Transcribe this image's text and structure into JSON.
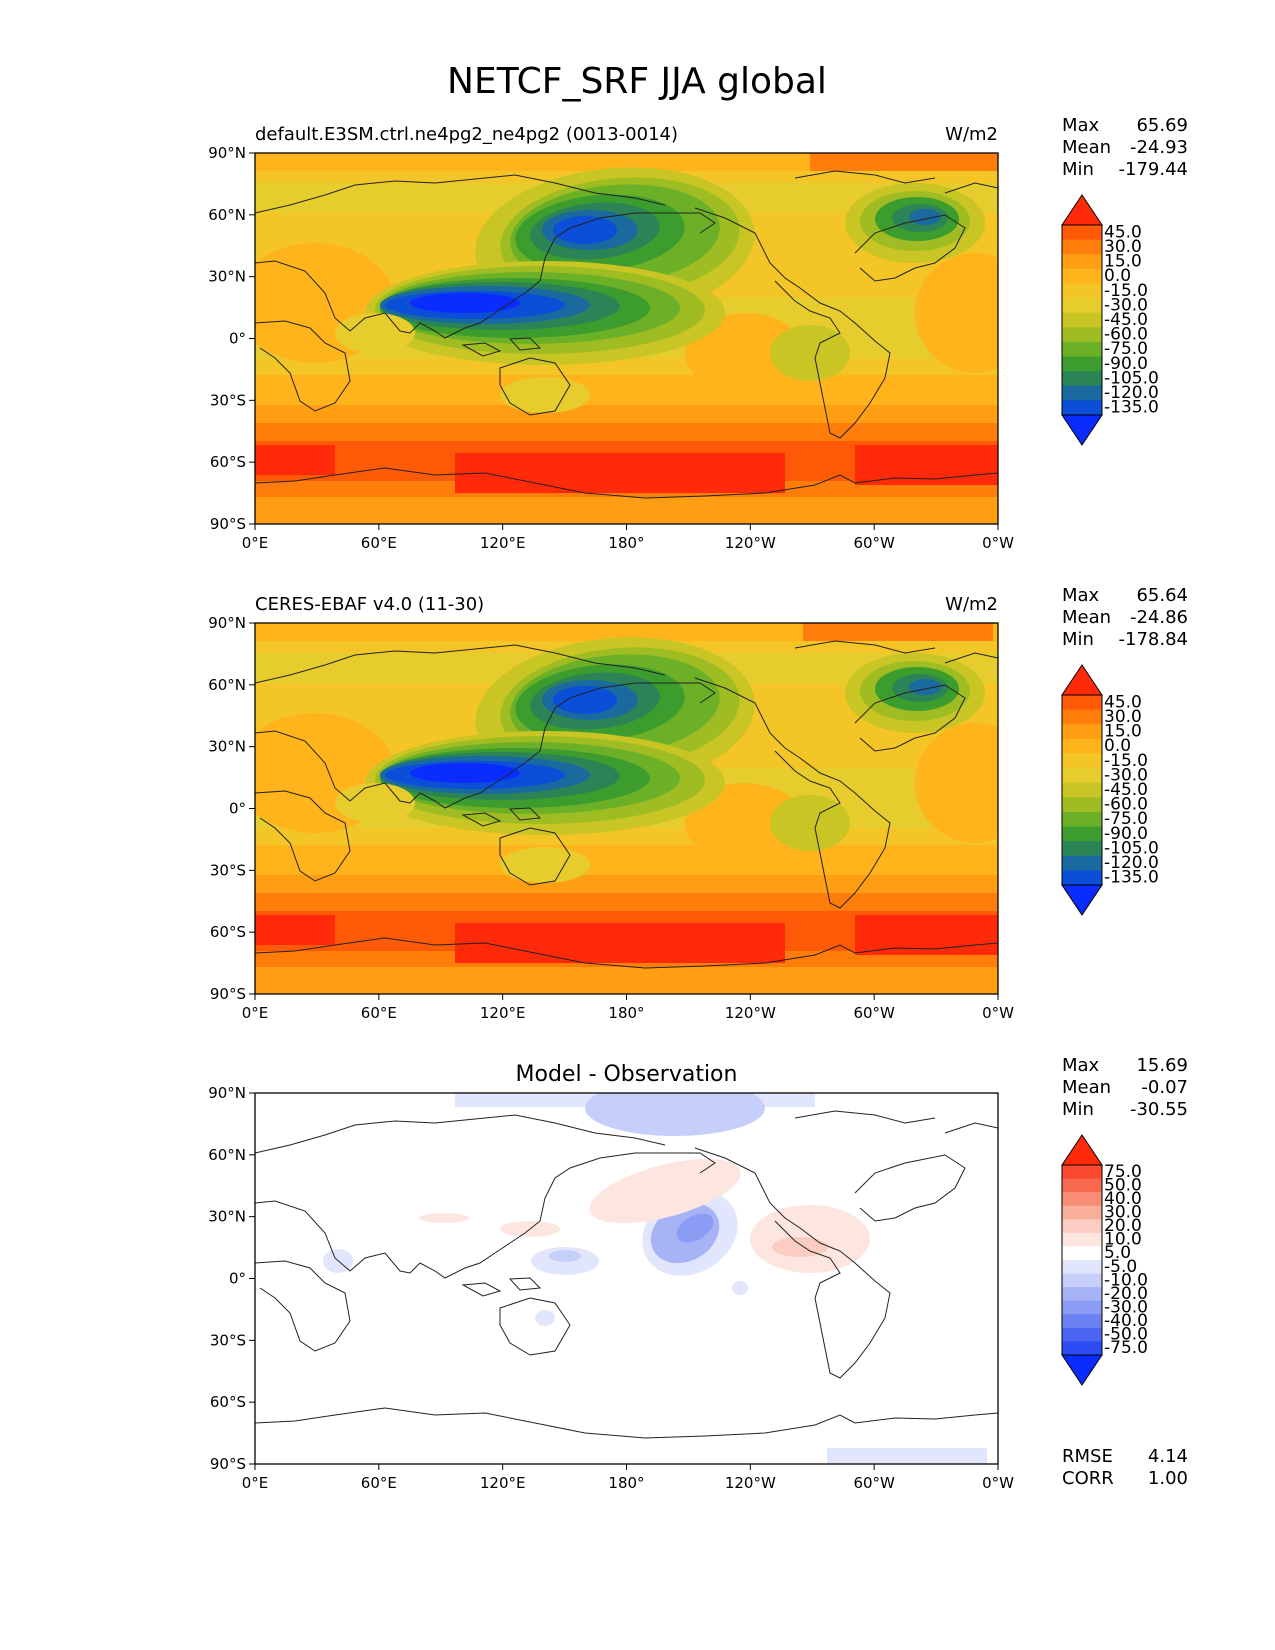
{
  "title": "NETCF_SRF JJA global",
  "chart_data": [
    {
      "type": "heatmap",
      "title": "default.E3SM.ctrl.ne4pg2_ne4pg2 (0013-0014)",
      "units": "W/m2",
      "stats": {
        "max": "65.69",
        "mean": "-24.93",
        "min": "-179.44"
      },
      "stat_labels": {
        "max": "Max",
        "mean": "Mean",
        "min": "Min"
      },
      "x_ticks": [
        "0°E",
        "60°E",
        "120°E",
        "180°",
        "120°W",
        "60°W",
        "0°W"
      ],
      "y_ticks": [
        "90°N",
        "60°N",
        "30°N",
        "0°",
        "30°S",
        "60°S",
        "90°S"
      ],
      "colorbar_levels": [
        "45.0",
        "30.0",
        "15.0",
        "0.0",
        "-15.0",
        "-30.0",
        "-45.0",
        "-60.0",
        "-75.0",
        "-90.0",
        "-105.0",
        "-120.0",
        "-135.0"
      ],
      "colorbar_colors": [
        "#ff2a0a",
        "#ff5a08",
        "#ff7d0a",
        "#ff9e12",
        "#ffb41c",
        "#f4c526",
        "#e6cc2c",
        "#c8c524",
        "#9fbd22",
        "#6cb028",
        "#3d9c2e",
        "#2b8456",
        "#1a6aa0",
        "#0b4ed8",
        "#0b2cff"
      ]
    },
    {
      "type": "heatmap",
      "title": "CERES-EBAF v4.0 (11-30)",
      "units": "W/m2",
      "stats": {
        "max": "65.64",
        "mean": "-24.86",
        "min": "-178.84"
      },
      "stat_labels": {
        "max": "Max",
        "mean": "Mean",
        "min": "Min"
      },
      "x_ticks": [
        "0°E",
        "60°E",
        "120°E",
        "180°",
        "120°W",
        "60°W",
        "0°W"
      ],
      "y_ticks": [
        "90°N",
        "60°N",
        "30°N",
        "0°",
        "30°S",
        "60°S",
        "90°S"
      ],
      "colorbar_levels": [
        "45.0",
        "30.0",
        "15.0",
        "0.0",
        "-15.0",
        "-30.0",
        "-45.0",
        "-60.0",
        "-75.0",
        "-90.0",
        "-105.0",
        "-120.0",
        "-135.0"
      ],
      "colorbar_colors": [
        "#ff2a0a",
        "#ff5a08",
        "#ff7d0a",
        "#ff9e12",
        "#ffb41c",
        "#f4c526",
        "#e6cc2c",
        "#c8c524",
        "#9fbd22",
        "#6cb028",
        "#3d9c2e",
        "#2b8456",
        "#1a6aa0",
        "#0b4ed8",
        "#0b2cff"
      ]
    },
    {
      "type": "heatmap",
      "title": "Model - Observation",
      "units": "",
      "stats": {
        "max": "15.69",
        "mean": "-0.07",
        "min": "-30.55"
      },
      "stat_labels": {
        "max": "Max",
        "mean": "Mean",
        "min": "Min"
      },
      "metrics": {
        "rmse_label": "RMSE",
        "rmse": "4.14",
        "corr_label": "CORR",
        "corr": "1.00"
      },
      "x_ticks": [
        "0°E",
        "60°E",
        "120°E",
        "180°",
        "120°W",
        "60°W",
        "0°W"
      ],
      "y_ticks": [
        "90°N",
        "60°N",
        "30°N",
        "0°",
        "30°S",
        "60°S",
        "90°S"
      ],
      "colorbar_levels": [
        "75.0",
        "50.0",
        "40.0",
        "30.0",
        "20.0",
        "10.0",
        "5.0",
        "-5.0",
        "-10.0",
        "-20.0",
        "-30.0",
        "-40.0",
        "-50.0",
        "-75.0"
      ],
      "colorbar_colors": [
        "#ff2a0a",
        "#fb4a30",
        "#f76a50",
        "#f88c74",
        "#f9ae9a",
        "#fbcdc2",
        "#fde6e0",
        "#ffffff",
        "#e2e6fc",
        "#c6cefa",
        "#a6b4f6",
        "#8a9cf4",
        "#6c82f2",
        "#4c66f2",
        "#2d4cf6",
        "#0b2cff"
      ]
    }
  ]
}
